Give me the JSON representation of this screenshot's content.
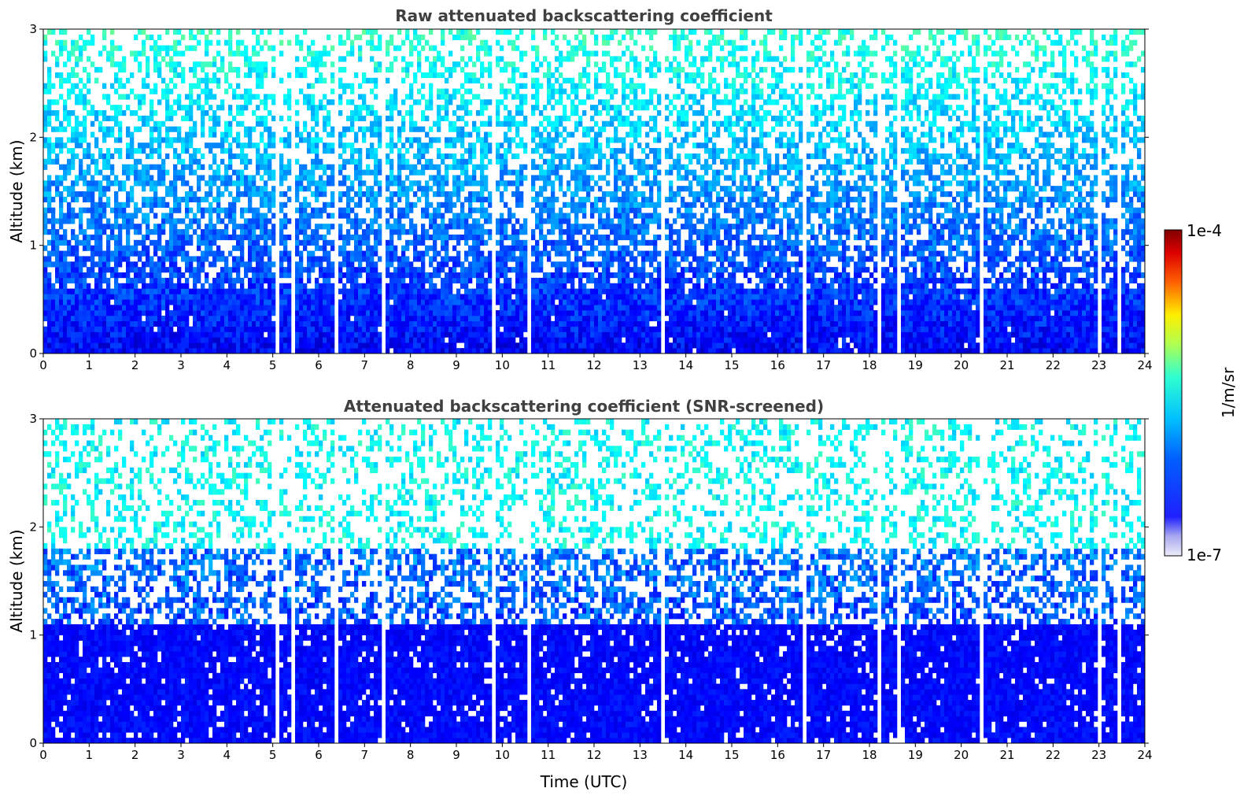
{
  "chart_data": [
    {
      "type": "heatmap",
      "title": "Raw attenuated backscattering coefficient",
      "xlabel": "",
      "ylabel": "Altitude (km)",
      "xlim": [
        0,
        24
      ],
      "ylim": [
        0,
        3
      ],
      "x_ticks": [
        "0",
        "1",
        "2",
        "3",
        "4",
        "5",
        "6",
        "7",
        "8",
        "9",
        "10",
        "11",
        "12",
        "13",
        "14",
        "15",
        "16",
        "17",
        "18",
        "19",
        "20",
        "21",
        "22",
        "23",
        "24"
      ],
      "y_ticks": [
        "0",
        "1",
        "2",
        "3"
      ],
      "value_range": [
        1e-07,
        0.0001
      ],
      "colormap": "jet (log scale)",
      "screened": false
    },
    {
      "type": "heatmap",
      "title": "Attenuated backscattering coefficient (SNR-screened)",
      "xlabel": "Time (UTC)",
      "ylabel": "Altitude (km)",
      "xlim": [
        0,
        24
      ],
      "ylim": [
        0,
        3
      ],
      "x_ticks": [
        "0",
        "1",
        "2",
        "3",
        "4",
        "5",
        "6",
        "7",
        "8",
        "9",
        "10",
        "11",
        "12",
        "13",
        "14",
        "15",
        "16",
        "17",
        "18",
        "19",
        "20",
        "21",
        "22",
        "23",
        "24"
      ],
      "y_ticks": [
        "0",
        "1",
        "2",
        "3"
      ],
      "value_range": [
        1e-07,
        0.0001
      ],
      "colormap": "jet (log scale)",
      "screened": true
    }
  ],
  "colorbar": {
    "label": "1/m/sr",
    "max_label": "1e-4",
    "min_label": "1e-7",
    "colors": [
      "#e8e8f8",
      "#b0b0f0",
      "#4040ff",
      "#0010ff",
      "#0050ff",
      "#00a0ff",
      "#00e0ff",
      "#40ffc0",
      "#a0ff60",
      "#f0ff00",
      "#ffb000",
      "#ff4000",
      "#d00000",
      "#800000"
    ]
  }
}
